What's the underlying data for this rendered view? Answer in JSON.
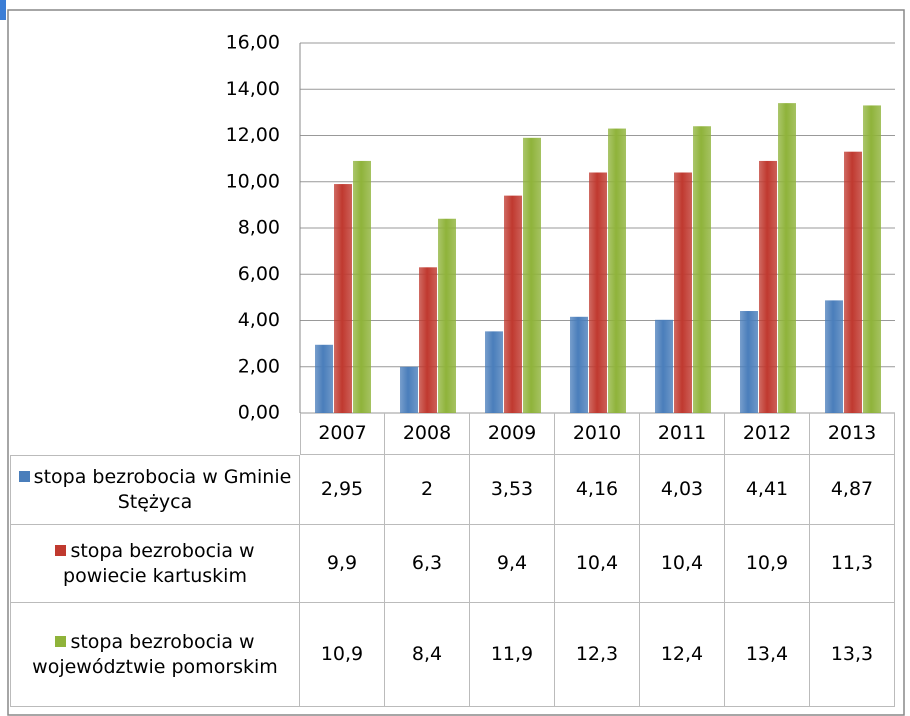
{
  "chart_data": {
    "type": "bar",
    "categories": [
      "2007",
      "2008",
      "2009",
      "2010",
      "2011",
      "2012",
      "2013"
    ],
    "series": [
      {
        "name": "stopa bezrobocia w Gminie Stężyca",
        "color": "#4a7ebb",
        "values": [
          2.95,
          2,
          3.53,
          4.16,
          4.03,
          4.41,
          4.87
        ],
        "value_labels": [
          "2,95",
          "2",
          "3,53",
          "4,16",
          "4,03",
          "4,41",
          "4,87"
        ]
      },
      {
        "name": "stopa bezrobocia w powiecie kartuskim",
        "color": "#c0392f",
        "values": [
          9.9,
          6.3,
          9.4,
          10.4,
          10.4,
          10.9,
          11.3
        ],
        "value_labels": [
          "9,9",
          "6,3",
          "9,4",
          "10,4",
          "10,4",
          "10,9",
          "11,3"
        ]
      },
      {
        "name": "stopa bezrobocia w województwie pomorskim",
        "color": "#8fb33a",
        "values": [
          10.9,
          8.4,
          11.9,
          12.3,
          12.4,
          13.4,
          13.3
        ],
        "value_labels": [
          "10,9",
          "8,4",
          "11,9",
          "12,3",
          "12,4",
          "13,4",
          "13,3"
        ]
      }
    ],
    "ylim": [
      0,
      16
    ],
    "yticks": [
      {
        "value": 0,
        "label": "0,00"
      },
      {
        "value": 2,
        "label": "2,00"
      },
      {
        "value": 4,
        "label": "4,00"
      },
      {
        "value": 6,
        "label": "6,00"
      },
      {
        "value": 8,
        "label": "8,00"
      },
      {
        "value": 10,
        "label": "10,00"
      },
      {
        "value": 12,
        "label": "12,00"
      },
      {
        "value": 14,
        "label": "14,00"
      },
      {
        "value": 16,
        "label": "16,00"
      }
    ],
    "grid": true
  }
}
